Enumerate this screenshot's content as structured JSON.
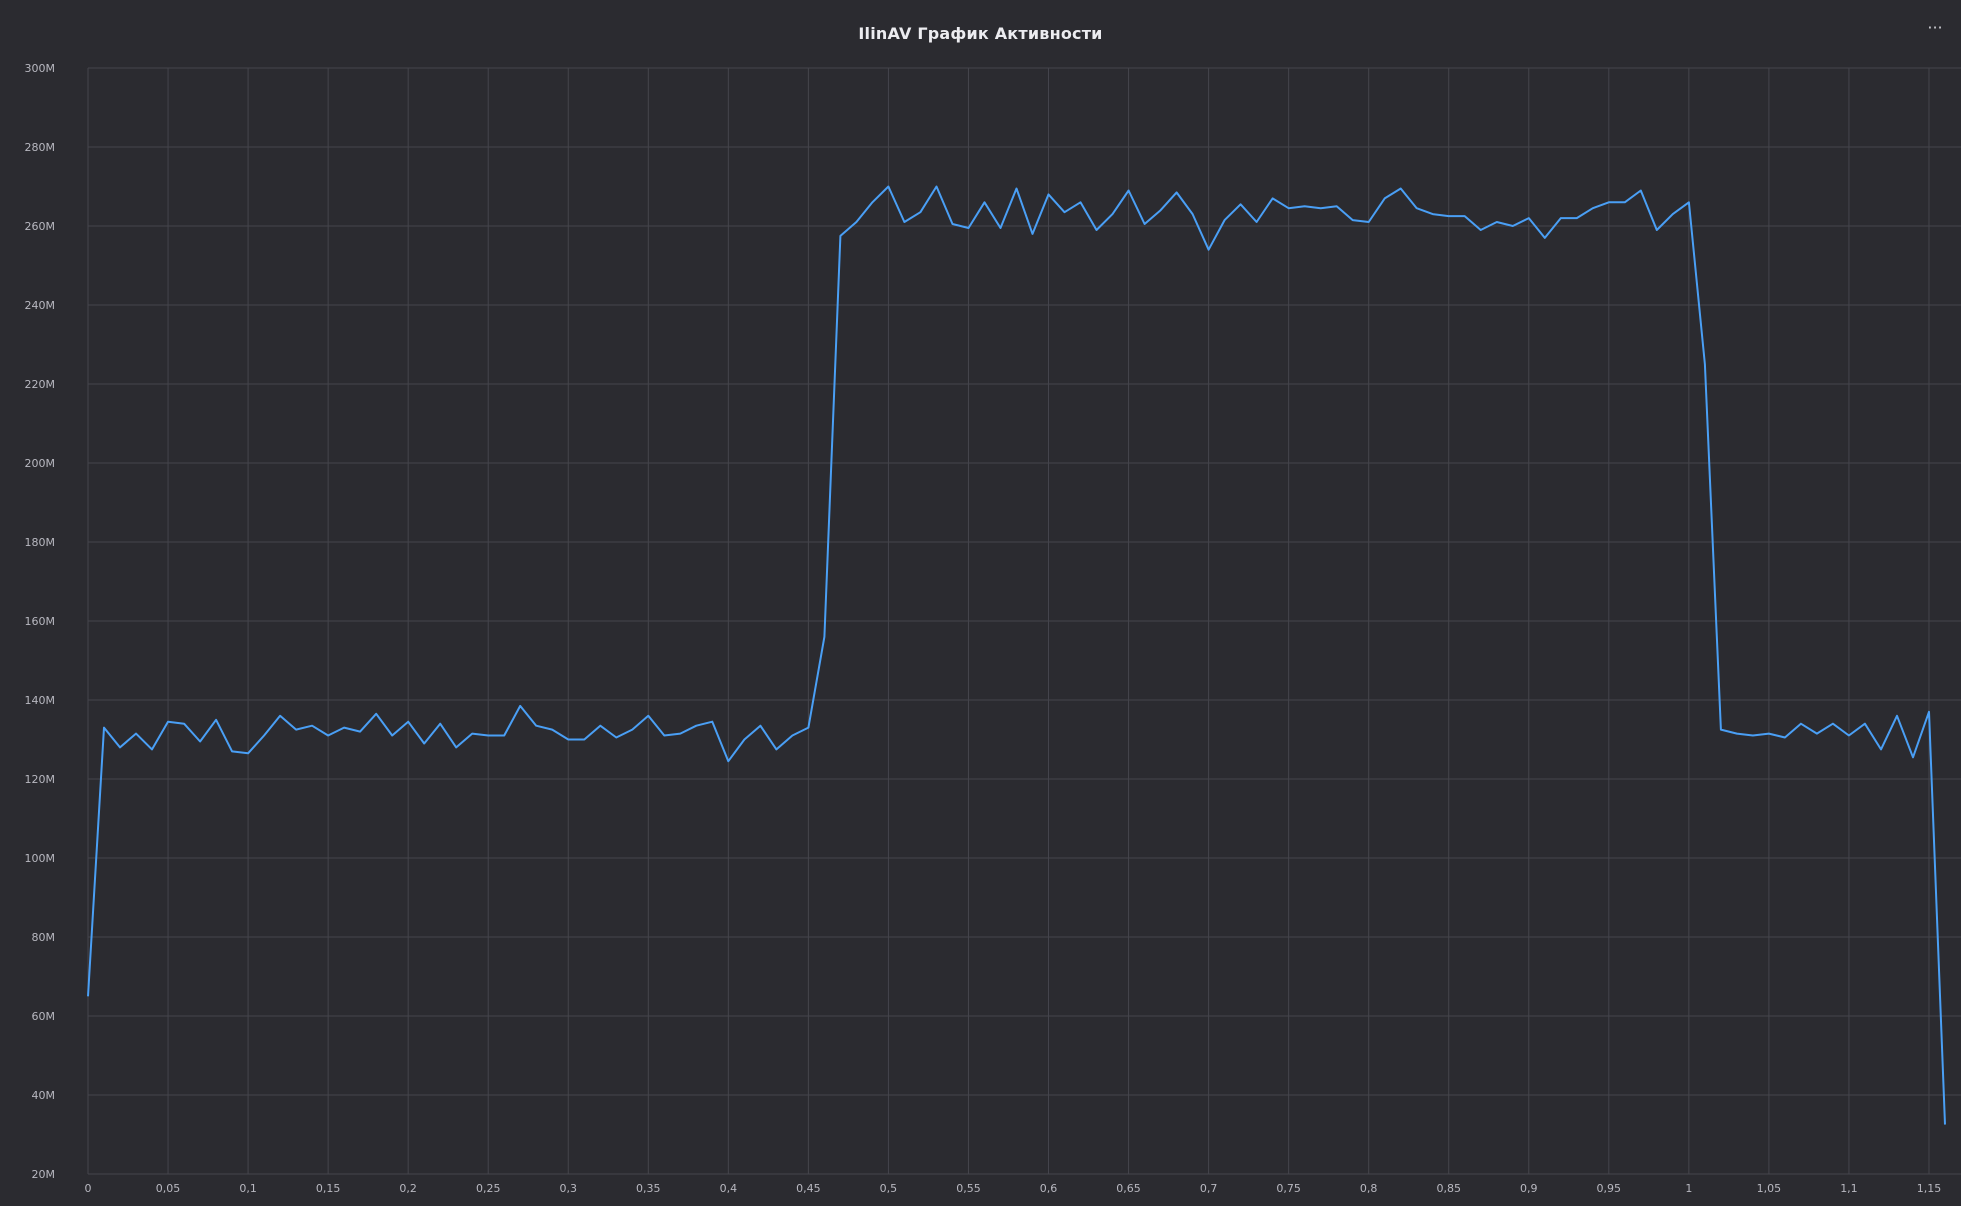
{
  "chart_data": {
    "type": "line",
    "title": "IlinAV График Активности",
    "xlabel": "",
    "ylabel": "",
    "xlim": [
      0,
      1.17
    ],
    "ylim": [
      20000000,
      300000000
    ],
    "grid": true,
    "x_ticks": [
      0,
      0.05,
      0.1,
      0.15,
      0.2,
      0.25,
      0.3,
      0.35,
      0.4,
      0.45,
      0.5,
      0.55,
      0.6,
      0.65,
      0.7,
      0.75,
      0.8,
      0.85,
      0.9,
      0.95,
      1,
      1.05,
      1.1,
      1.15
    ],
    "x_tick_labels": [
      "0",
      "0,05",
      "0,1",
      "0,15",
      "0,2",
      "0,25",
      "0,3",
      "0,35",
      "0,4",
      "0,45",
      "0,5",
      "0,55",
      "0,6",
      "0,65",
      "0,7",
      "0,75",
      "0,8",
      "0,85",
      "0,9",
      "0,95",
      "1",
      "1,05",
      "1,1",
      "1,15"
    ],
    "y_ticks": [
      20000000,
      40000000,
      60000000,
      80000000,
      100000000,
      120000000,
      140000000,
      160000000,
      180000000,
      200000000,
      220000000,
      240000000,
      260000000,
      280000000,
      300000000
    ],
    "y_tick_labels": [
      "20M",
      "40M",
      "60M",
      "80M",
      "100M",
      "120M",
      "140M",
      "160M",
      "180M",
      "200M",
      "220M",
      "240M",
      "260M",
      "280M",
      "300M"
    ],
    "series": [
      {
        "color": "#4a9ff5",
        "x": [
          0,
          0.01,
          0.02,
          0.03,
          0.04,
          0.05,
          0.06,
          0.07,
          0.08,
          0.09,
          0.1,
          0.11,
          0.12,
          0.13,
          0.14,
          0.15,
          0.16,
          0.17,
          0.18,
          0.19,
          0.2,
          0.21,
          0.22,
          0.23,
          0.24,
          0.25,
          0.26,
          0.27,
          0.28,
          0.29,
          0.3,
          0.31,
          0.32,
          0.33,
          0.34,
          0.35,
          0.36,
          0.37,
          0.38,
          0.39,
          0.4,
          0.41,
          0.42,
          0.43,
          0.44,
          0.45,
          0.46,
          0.47,
          0.48,
          0.49,
          0.5,
          0.51,
          0.52,
          0.53,
          0.54,
          0.55,
          0.56,
          0.57,
          0.58,
          0.59,
          0.6,
          0.61,
          0.62,
          0.63,
          0.64,
          0.65,
          0.66,
          0.67,
          0.68,
          0.69,
          0.7,
          0.71,
          0.72,
          0.73,
          0.74,
          0.75,
          0.76,
          0.77,
          0.78,
          0.79,
          0.8,
          0.81,
          0.82,
          0.83,
          0.84,
          0.85,
          0.86,
          0.87,
          0.88,
          0.89,
          0.9,
          0.91,
          0.92,
          0.93,
          0.94,
          0.95,
          0.96,
          0.97,
          0.98,
          0.99,
          1,
          1.01,
          1.02,
          1.03,
          1.04,
          1.05,
          1.06,
          1.07,
          1.08,
          1.09,
          1.1,
          1.11,
          1.12,
          1.13,
          1.14,
          1.15,
          1.16
        ],
        "y": [
          65000000,
          133000000,
          128000000,
          131500000,
          127500000,
          134500000,
          134000000,
          129500000,
          135000000,
          127000000,
          126500000,
          131000000,
          136000000,
          132500000,
          133500000,
          131000000,
          133000000,
          132000000,
          136500000,
          131000000,
          134500000,
          129000000,
          134000000,
          128000000,
          131500000,
          131000000,
          131000000,
          138500000,
          133500000,
          132500000,
          130000000,
          130000000,
          133500000,
          130500000,
          132500000,
          136000000,
          131000000,
          131500000,
          133500000,
          134500000,
          124500000,
          130000000,
          133500000,
          127500000,
          131000000,
          133000000,
          156000000,
          257500000,
          261000000,
          266000000,
          270000000,
          261000000,
          263500000,
          270000000,
          260500000,
          259500000,
          266000000,
          259500000,
          269500000,
          258000000,
          268000000,
          263500000,
          266000000,
          259000000,
          263000000,
          269000000,
          260500000,
          264000000,
          268500000,
          263000000,
          254000000,
          261500000,
          265500000,
          261000000,
          267000000,
          264500000,
          265000000,
          264500000,
          265000000,
          261500000,
          261000000,
          267000000,
          269500000,
          264500000,
          263000000,
          262500000,
          262500000,
          259000000,
          261000000,
          260000000,
          262000000,
          257000000,
          262000000,
          262000000,
          264500000,
          266000000,
          266000000,
          269000000,
          259000000,
          263000000,
          266000000,
          225000000,
          132500000,
          131500000,
          131000000,
          131500000,
          130500000,
          134000000,
          131500000,
          134000000,
          131000000,
          134000000,
          127500000,
          136000000,
          125500000,
          137000000,
          32500000
        ]
      }
    ]
  },
  "menu": {
    "icon": "more-dots-icon",
    "label": "···"
  },
  "colors": {
    "background": "#2b2b30",
    "grid": "#45454c",
    "line": "#4a9ff5"
  }
}
